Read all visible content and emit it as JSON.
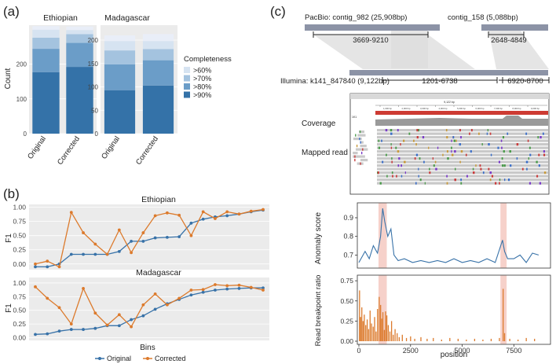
{
  "panels": {
    "a": {
      "label": "(a)"
    },
    "b": {
      "label": "(b)"
    },
    "c": {
      "label": "(c)"
    }
  },
  "colors": {
    "c90": "#3472a8",
    "c80": "#6b9dc8",
    "c70": "#a4c3df",
    "c60": "#d6e3f1",
    "c_top": "#e9eef8",
    "orange": "#dc7a2c",
    "blue": "#3872a8",
    "pink": "#f4c5bd",
    "grey_bar": "#8c93a6",
    "red": "#cd3b33"
  },
  "chart_data": [
    {
      "id": "a-ethiopian",
      "type": "bar",
      "title": "Ethiopian",
      "ylabel": "Count",
      "categories": [
        "Original",
        "Corrected"
      ],
      "ylim": [
        0,
        312
      ],
      "yticks": [
        0,
        100,
        200
      ],
      "series": [
        {
          "name": ">90%",
          "values": [
            177,
            192
          ]
        },
        {
          "name": ">80%",
          "values": [
            67,
            69
          ]
        },
        {
          "name": ">70%",
          "values": [
            32,
            25
          ]
        },
        {
          "name": ">60%",
          "values": [
            23,
            12
          ]
        },
        {
          "name": "top",
          "values": [
            10,
            10
          ]
        }
      ]
    },
    {
      "id": "a-madagascar",
      "type": "bar",
      "title": "Madagascar",
      "categories": [
        "Original",
        "Corrected"
      ],
      "ylim": [
        0,
        232
      ],
      "yticks": [
        0,
        50,
        100,
        150,
        200
      ],
      "series": [
        {
          "name": ">90%",
          "values": [
            93,
            103
          ]
        },
        {
          "name": ">80%",
          "values": [
            55,
            54
          ]
        },
        {
          "name": ">70%",
          "values": [
            30,
            24
          ]
        },
        {
          "name": ">60%",
          "values": [
            20,
            17
          ]
        },
        {
          "name": "top",
          "values": [
            12,
            15
          ]
        }
      ],
      "legend": {
        "title": "Completeness",
        "entries": [
          ">60%",
          ">70%",
          ">80%",
          ">90%"
        ]
      }
    },
    {
      "id": "b-ethiopian",
      "type": "line",
      "title": "Ethiopian",
      "ylabel": "F1",
      "ylim": [
        -0.1,
        1.05
      ],
      "yticks": [
        0.0,
        0.25,
        0.5,
        0.75,
        1.0
      ],
      "ytick_labels": [
        "0.00",
        "0.25",
        "0.50",
        "0.75",
        "1.00"
      ],
      "series": [
        {
          "name": "Original",
          "values": [
            -0.05,
            -0.05,
            0.0,
            0.17,
            0.17,
            0.17,
            0.17,
            0.22,
            0.4,
            0.4,
            0.46,
            0.47,
            0.48,
            0.72,
            0.79,
            0.83,
            0.85,
            0.88,
            0.92,
            0.95
          ]
        },
        {
          "name": "Corrected",
          "values": [
            0.0,
            0.05,
            -0.05,
            0.91,
            0.55,
            0.35,
            0.17,
            0.6,
            0.2,
            0.55,
            0.85,
            0.9,
            0.86,
            0.5,
            0.92,
            0.8,
            0.92,
            0.88,
            0.93,
            0.96
          ]
        }
      ]
    },
    {
      "id": "b-madagascar",
      "type": "line",
      "title": "Madagascar",
      "ylabel": "F1",
      "xlabel": "Bins",
      "ylim": [
        -0.05,
        1.1
      ],
      "yticks": [
        0.0,
        0.25,
        0.5,
        0.75,
        1.0
      ],
      "ytick_labels": [
        "0.00",
        "0.25",
        "0.50",
        "0.75",
        "1.00"
      ],
      "series": [
        {
          "name": "Original",
          "values": [
            0.06,
            0.07,
            0.12,
            0.15,
            0.15,
            0.17,
            0.22,
            0.22,
            0.33,
            0.4,
            0.52,
            0.62,
            0.7,
            0.78,
            0.83,
            0.87,
            0.89,
            0.9,
            0.91,
            0.91
          ]
        },
        {
          "name": "Corrected",
          "values": [
            0.93,
            0.72,
            0.55,
            0.25,
            0.9,
            0.45,
            0.23,
            0.42,
            0.2,
            0.6,
            0.8,
            0.6,
            0.72,
            0.87,
            0.88,
            0.97,
            0.95,
            0.96,
            0.92,
            0.87
          ]
        }
      ],
      "legend": {
        "entries": [
          "Original",
          "Corrected"
        ]
      }
    },
    {
      "id": "c-anomaly",
      "type": "line",
      "ylabel": "Anomaly score",
      "xlim": [
        0,
        9122
      ],
      "ylim": [
        0.63,
        0.98
      ],
      "yticks": [
        0.7,
        0.8,
        0.9
      ],
      "highlights": [
        [
          950,
          1350
        ],
        [
          6850,
          7150
        ]
      ],
      "x": [
        0,
        300,
        500,
        700,
        900,
        1050,
        1150,
        1250,
        1400,
        1550,
        1700,
        1900,
        2200,
        2600,
        3000,
        3400,
        3800,
        4200,
        4600,
        5000,
        5400,
        5800,
        6200,
        6600,
        6950,
        7050,
        7200,
        7500,
        7800,
        8100,
        8400,
        8700
      ],
      "values": [
        0.66,
        0.72,
        0.68,
        0.75,
        0.71,
        0.8,
        0.95,
        0.88,
        0.8,
        0.84,
        0.7,
        0.67,
        0.68,
        0.66,
        0.67,
        0.66,
        0.67,
        0.66,
        0.68,
        0.66,
        0.67,
        0.66,
        0.68,
        0.66,
        0.78,
        0.72,
        0.68,
        0.68,
        0.7,
        0.66,
        0.71,
        0.7
      ]
    },
    {
      "id": "c-breakpoint",
      "type": "bar",
      "ylabel": "Read breakpoint ratio",
      "xlabel": "position",
      "xlim": [
        0,
        9122
      ],
      "ylim": [
        0,
        0.8
      ],
      "xticks": [
        0,
        2500,
        5000,
        7500
      ],
      "xtick_labels": [
        "0",
        "2500",
        "5000",
        "7500"
      ],
      "yticks": [
        0.0,
        0.25,
        0.5,
        0.75
      ],
      "ytick_labels": [
        "0.00",
        "0.25",
        "0.50",
        "0.75"
      ],
      "highlights": [
        [
          950,
          1350
        ],
        [
          6850,
          7150
        ]
      ],
      "x": [
        30,
        80,
        140,
        200,
        260,
        330,
        400,
        470,
        540,
        610,
        690,
        760,
        830,
        900,
        980,
        1050,
        1100,
        1160,
        1230,
        1290,
        1350,
        1420,
        1500,
        1580,
        1660,
        1750,
        1850,
        1950,
        2100,
        2300,
        2500,
        2700,
        3000,
        3300,
        3600,
        4000,
        4400,
        4800,
        5200,
        5600,
        6000,
        6400,
        6800,
        6980,
        7050,
        7300,
        7700,
        8100,
        8500
      ],
      "values": [
        0.63,
        0.3,
        0.42,
        0.25,
        0.33,
        0.2,
        0.27,
        0.15,
        0.38,
        0.22,
        0.18,
        0.3,
        0.12,
        0.4,
        0.55,
        0.45,
        0.28,
        0.36,
        0.14,
        0.37,
        0.32,
        0.2,
        0.12,
        0.25,
        0.08,
        0.15,
        0.1,
        0.05,
        0.08,
        0.04,
        0.06,
        0.03,
        0.05,
        0.03,
        0.04,
        0.02,
        0.04,
        0.03,
        0.02,
        0.03,
        0.02,
        0.03,
        0.04,
        0.65,
        0.1,
        0.03,
        0.02,
        0.04,
        0.03
      ]
    }
  ],
  "contig_diagram": {
    "pacbio_label": "PacBio: contig_982 (25,908bp)",
    "pacbio2_label": "contig_158 (5,088bp)",
    "range1": "3669-9210",
    "range2": "2648-4849",
    "illumina_label": "Illumina: k141_847840 (9,122bp)",
    "range3": "1201-6738",
    "range4": "6920-8700"
  },
  "igv": {
    "coverage_label": "Coverage",
    "mapped_read_label": "Mapped read",
    "scale_label": "9,122 bp",
    "ruler_ticks": [
      "1,000 bp",
      "2,000 bp",
      "3,000 bp",
      "4,000 bp",
      "5,000 bp",
      "6,000 bp",
      "7,000 bp",
      "8,000 bp",
      "9,000 bp"
    ],
    "track_label": "1K1"
  }
}
